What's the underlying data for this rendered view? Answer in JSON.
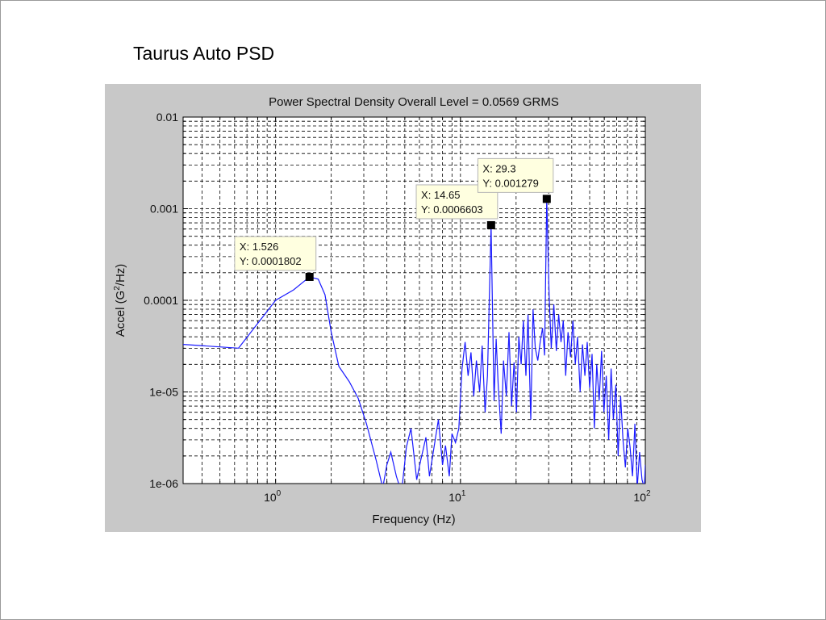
{
  "slide": {
    "title": "Taurus Auto PSD"
  },
  "chart_data": {
    "type": "line",
    "title": "Power Spectral Density  Overall Level = 0.0569 GRMS",
    "xlabel": "Frequency (Hz)",
    "ylabel_main": "Accel (G",
    "ylabel_sup": "2",
    "ylabel_tail": "/Hz)",
    "xscale": "log",
    "yscale": "log",
    "xlim": [
      0.316,
      100
    ],
    "ylim": [
      1e-06,
      0.01
    ],
    "grid": true,
    "line_color": "#1a1aff",
    "marker_color": "#000000",
    "x_ticks": [
      {
        "value": 1,
        "base": "10",
        "exp": "0"
      },
      {
        "value": 10,
        "base": "10",
        "exp": "1"
      },
      {
        "value": 100,
        "base": "10",
        "exp": "2"
      }
    ],
    "y_ticks": [
      {
        "value": 0.01,
        "label": "0.01"
      },
      {
        "value": 0.001,
        "label": "0.001"
      },
      {
        "value": 0.0001,
        "label": "0.0001"
      },
      {
        "value": 1e-05,
        "label": "1e-05"
      },
      {
        "value": 1e-06,
        "label": "1e-06"
      }
    ],
    "series": [
      {
        "x": [
          0.316,
          0.63,
          1.0,
          1.25,
          1.526,
          1.7,
          1.85,
          2.0,
          2.2,
          2.5,
          2.8,
          3.1,
          3.5,
          3.8,
          4.0,
          4.2,
          4.5,
          4.8,
          5.1,
          5.4,
          5.8,
          6.1,
          6.5,
          6.8,
          7.2,
          7.6,
          8.0,
          8.3,
          8.7,
          9.0,
          9.4,
          9.8,
          10.2,
          10.6,
          11.0,
          11.4,
          11.8,
          12.2,
          12.7,
          13.1,
          13.6,
          14.0,
          14.65,
          15.2,
          15.6,
          16.0,
          16.6,
          17.1,
          17.7,
          18.3,
          18.9,
          19.5,
          20.1,
          20.7,
          21.3,
          21.9,
          22.6,
          23.2,
          24.0,
          24.7,
          25.4,
          26.2,
          27.0,
          27.8,
          28.5,
          29.3,
          30.2,
          31.0,
          32.0,
          33.0,
          34.0,
          35.0,
          36.0,
          37.1,
          38.2,
          39.4,
          40.6,
          41.8,
          43.0,
          44.4,
          45.7,
          47.1,
          48.5,
          50.0,
          51.5,
          53.0,
          54.6,
          56.3,
          58.0,
          59.7,
          61.5,
          63.4,
          65.3,
          67.2,
          69.3,
          71.3,
          73.5,
          75.7,
          78.0,
          80.3,
          82.7,
          85.2,
          87.8,
          90.4,
          93.1,
          96.0,
          98.8,
          100.0
        ],
        "y": [
          3.3e-05,
          3e-05,
          0.0001,
          0.00013,
          0.0001802,
          0.00017,
          0.000115,
          4.5e-05,
          1.9e-05,
          1.3e-05,
          8.5e-06,
          4.5e-06,
          1.8e-06,
          9e-07,
          1.6e-06,
          2.2e-06,
          1.2e-06,
          8e-07,
          2.5e-06,
          4e-06,
          1.1e-06,
          1.8e-06,
          3.2e-06,
          1.2e-06,
          2.5e-06,
          5e-06,
          1.6e-06,
          2.6e-06,
          1.2e-06,
          3.5e-06,
          2.8e-06,
          4e-06,
          1.8e-05,
          3.5e-05,
          1.5e-05,
          2.7e-05,
          9e-06,
          2.2e-05,
          1e-05,
          3.2e-05,
          6e-06,
          1.5e-05,
          0.0006603,
          8e-06,
          3.8e-05,
          1.2e-05,
          3.5e-06,
          2.2e-05,
          9e-06,
          4.5e-05,
          7e-06,
          2.1e-05,
          6e-06,
          4e-05,
          2e-05,
          6e-05,
          1.5e-05,
          7e-05,
          5e-06,
          8e-05,
          3e-05,
          2.2e-05,
          3.5e-05,
          5e-05,
          2.5e-05,
          0.001279,
          0.00011,
          3e-05,
          9e-05,
          2.8e-05,
          7e-05,
          3.5e-05,
          6e-05,
          1.5e-05,
          4.5e-05,
          2.4e-05,
          6e-05,
          2e-05,
          4e-05,
          1e-05,
          3.3e-05,
          1.5e-05,
          3.5e-05,
          1.1e-05,
          2.6e-05,
          4e-06,
          2e-05,
          8e-06,
          2.8e-05,
          6e-06,
          1.5e-05,
          3e-06,
          1.8e-05,
          5e-06,
          1.2e-05,
          2e-06,
          9e-06,
          3e-06,
          1.5e-06,
          4e-06,
          2.5e-06,
          1.2e-06,
          4.5e-06,
          9e-07,
          2.2e-06,
          1.1e-06,
          9e-07,
          1.6e-06
        ]
      }
    ],
    "datatips": [
      {
        "x": 1.526,
        "y": 0.0001802,
        "x_text": "X: 1.526",
        "y_text": "Y: 0.0001802"
      },
      {
        "x": 14.65,
        "y": 0.0006603,
        "x_text": "X: 14.65",
        "y_text": "Y: 0.0006603"
      },
      {
        "x": 29.3,
        "y": 0.001279,
        "x_text": "X: 29.3",
        "y_text": "Y: 0.001279"
      }
    ]
  }
}
